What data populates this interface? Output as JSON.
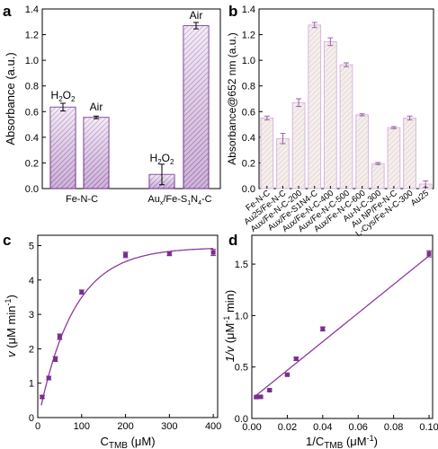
{
  "chart_data": [
    {
      "panel": "a",
      "type": "bar",
      "ylabel": "Absorbance (a.u.)",
      "ylim": [
        0,
        1.4
      ],
      "yticks": [
        "0.0",
        "0.2",
        "0.4",
        "0.6",
        "0.8",
        "1.0",
        "1.2",
        "1.4"
      ],
      "groups": [
        "Fe-N-C",
        "Aux/Fe-S1N4-C"
      ],
      "series": [
        {
          "bar_label": "H2O2",
          "values": [
            0.635,
            0.11
          ],
          "errors": [
            0.03,
            0.08
          ]
        },
        {
          "bar_label": "Air",
          "values": [
            0.555,
            1.27
          ],
          "errors": [
            0.01,
            0.025
          ]
        }
      ],
      "colors": {
        "bar_fill": "#e8d8ee",
        "bar_edge": "#6a2c87"
      }
    },
    {
      "panel": "b",
      "type": "bar",
      "ylabel": "Absorbance@652 nm (a.u.)",
      "ylim": [
        0,
        1.4
      ],
      "yticks": [
        "0.0",
        "0.2",
        "0.4",
        "0.6",
        "0.8",
        "1.0",
        "1.2",
        "1.4"
      ],
      "categories": [
        "Fe-N-C",
        "Au25/Fe-N-C",
        "Aux/Fe-N-C-200",
        "Aux/Fe-S1N4-C",
        "Aux/Fe-N-C-400",
        "Aux/Fe-N-C-500",
        "Aux/Fe-N-C-600",
        "Au-N-C-300",
        "Au NP/Fe-N-C",
        "L-Cys/Fe-N-C-300",
        "Au25"
      ],
      "values": [
        0.55,
        0.39,
        0.67,
        1.275,
        1.145,
        0.965,
        0.575,
        0.195,
        0.475,
        0.55,
        0.035
      ],
      "errors": [
        0.015,
        0.04,
        0.03,
        0.02,
        0.03,
        0.015,
        0.008,
        0.008,
        0.008,
        0.015,
        0.025
      ],
      "colors": {
        "bar_fill": "#f2ece7",
        "bar_edge": "#d9b7dc",
        "error": "#9a62a8"
      }
    },
    {
      "panel": "c",
      "type": "scatter",
      "ylabel": "v (μM min⁻¹)",
      "xlabel": "CTMB (μM)",
      "xlim": [
        0,
        410
      ],
      "ylim": [
        0,
        5.3
      ],
      "xticks": [
        "0",
        "100",
        "200",
        "300",
        "400"
      ],
      "yticks": [
        "0",
        "1",
        "2",
        "3",
        "4",
        "5"
      ],
      "x": [
        10,
        25,
        40,
        50,
        100,
        200,
        300,
        400
      ],
      "y": [
        0.6,
        1.15,
        1.7,
        2.35,
        3.65,
        4.73,
        4.76,
        4.8
      ],
      "errors": [
        0.04,
        0.05,
        0.07,
        0.08,
        0.06,
        0.08,
        0.05,
        0.09
      ],
      "colors": {
        "marker": "#7b2d8e",
        "line": "#8b3a9f"
      }
    },
    {
      "panel": "d",
      "type": "scatter",
      "ylabel": "1/v (μM⁻¹ min)",
      "xlabel": "1/CTMB (μM⁻¹)",
      "xlim": [
        0,
        0.102
      ],
      "ylim": [
        0,
        1.78
      ],
      "xticks": [
        "0.00",
        "0.02",
        "0.04",
        "0.06",
        "0.08",
        "0.10"
      ],
      "yticks": [
        "0.0",
        "0.5",
        "1.0",
        "1.5"
      ],
      "x": [
        0.0025,
        0.0033,
        0.005,
        0.01,
        0.02,
        0.025,
        0.04,
        0.1
      ],
      "y": [
        0.208,
        0.21,
        0.21,
        0.275,
        0.425,
        0.58,
        0.87,
        1.6
      ],
      "errors": [
        0.01,
        0.01,
        0.01,
        0.01,
        0.01,
        0.015,
        0.02,
        0.03
      ],
      "colors": {
        "marker": "#7b2d8e",
        "line": "#8b3a9f"
      }
    }
  ]
}
